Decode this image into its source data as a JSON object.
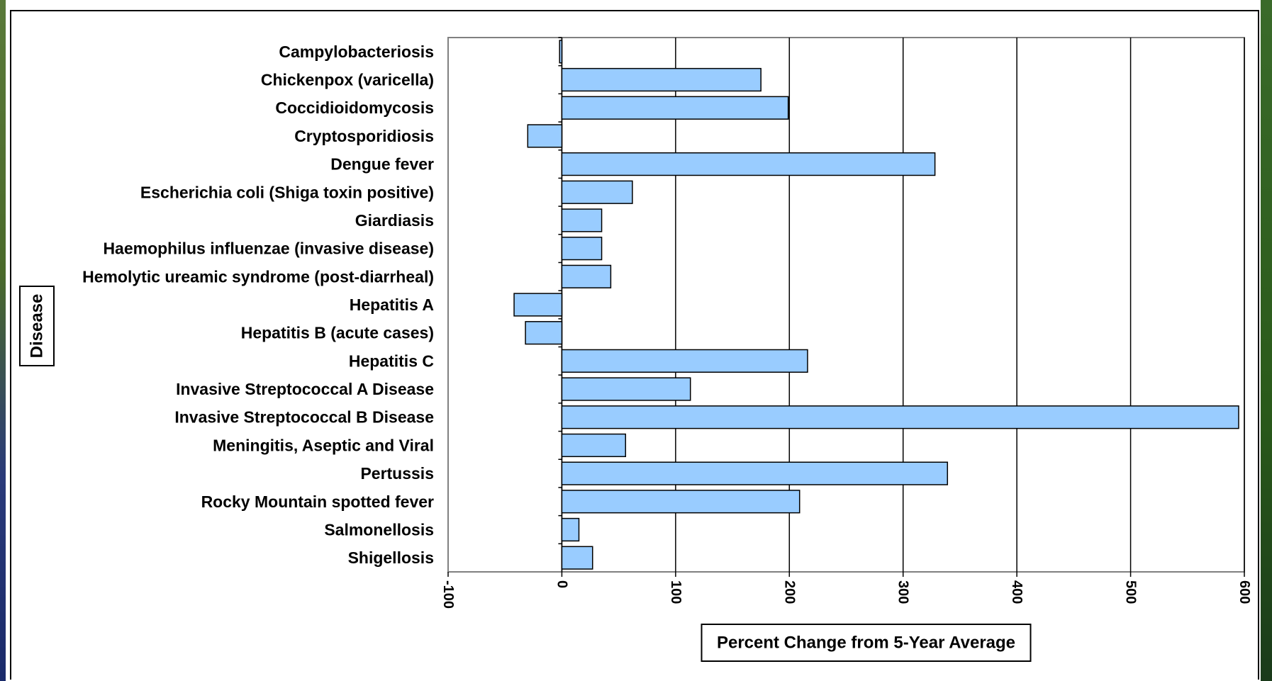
{
  "chart_data": {
    "type": "bar",
    "orientation": "horizontal",
    "xlabel": "Percent Change from 5-Year Average",
    "ylabel": "Disease",
    "xlim": [
      -100,
      600
    ],
    "x_ticks": [
      -100,
      0,
      100,
      200,
      300,
      400,
      500,
      600
    ],
    "grid": "vertical major gridlines",
    "categories": [
      "Campylobacteriosis",
      "Chickenpox (varicella)",
      "Coccidioidomycosis",
      "Cryptosporidiosis",
      "Dengue fever",
      "Escherichia coli (Shiga toxin positive)",
      "Giardiasis",
      "Haemophilus influenzae (invasive disease)",
      "Hemolytic ureamic syndrome (post-diarrheal)",
      "Hepatitis A",
      "Hepatitis B (acute cases)",
      "Hepatitis C",
      "Invasive Streptococcal A Disease",
      "Invasive Streptococcal B Disease",
      "Meningitis, Aseptic and Viral",
      "Pertussis",
      "Rocky Mountain spotted fever",
      "Salmonellosis",
      "Shigellosis"
    ],
    "values": [
      -2,
      175,
      199,
      -30,
      328,
      62,
      35,
      35,
      43,
      -42,
      -32,
      216,
      113,
      595,
      56,
      339,
      209,
      15,
      27
    ],
    "bar_color": "#99CCFF",
    "bar_edge_color": "#000000",
    "plot_background": "#FFFFFF"
  }
}
